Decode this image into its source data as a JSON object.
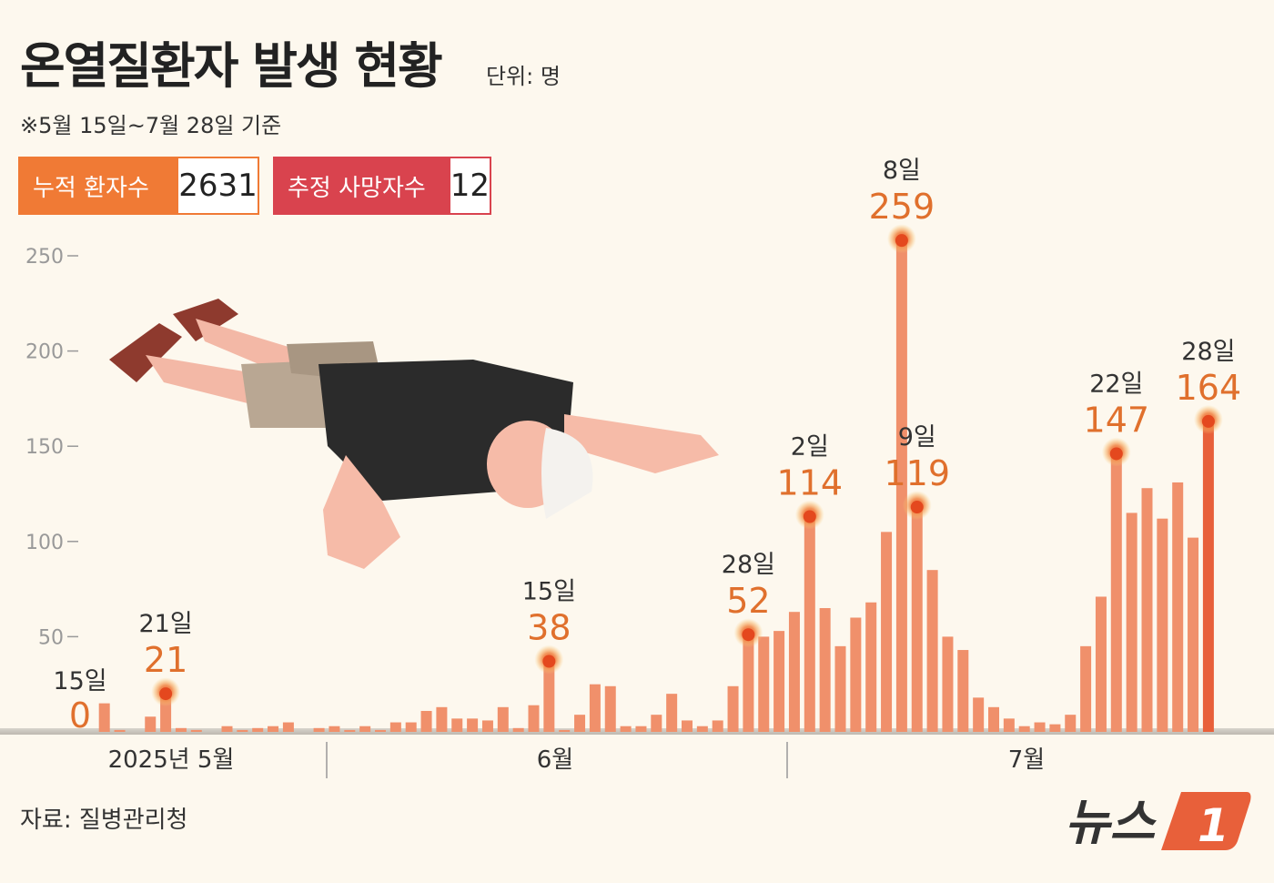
{
  "header": {
    "title": "온열질환자 발생 현황",
    "unit": "단위: 명",
    "basis": "※5월 15일~7월 28일 기준"
  },
  "summary": {
    "cumulative_label": "누적 환자수",
    "cumulative_value": "2631",
    "deaths_label": "추정 사망자수",
    "deaths_value": "12"
  },
  "colors": {
    "cumulative": "#F07A35",
    "deaths": "#D9434E",
    "bar": "#F0906B",
    "bar_latest": "#E8603A",
    "highlight_text": "#E0702D",
    "background": "#FDF8EE"
  },
  "chart_data": {
    "type": "bar",
    "title": "온열질환자 발생 현황",
    "ylim": [
      0,
      250
    ],
    "yticks": [
      50,
      100,
      150,
      200,
      250
    ],
    "grid": false,
    "month_labels": [
      "2025년 5월",
      "6월",
      "7월"
    ],
    "start_date": "2025-05-15",
    "end_date": "2025-07-28",
    "values": [
      0,
      0,
      15,
      1,
      0,
      8,
      21,
      2,
      1,
      0,
      3,
      1,
      2,
      3,
      5,
      0,
      2,
      3,
      1,
      3,
      1,
      5,
      5,
      11,
      13,
      7,
      7,
      6,
      13,
      2,
      14,
      38,
      1,
      9,
      25,
      24,
      3,
      3,
      9,
      20,
      6,
      3,
      6,
      24,
      52,
      50,
      53,
      63,
      114,
      65,
      45,
      60,
      68,
      105,
      259,
      119,
      85,
      50,
      43,
      18,
      13,
      7,
      3,
      5,
      4,
      9,
      45,
      71,
      147,
      115,
      128,
      112,
      131,
      102,
      164
    ],
    "annotations": [
      {
        "index": 0,
        "day": "15일",
        "value": "0"
      },
      {
        "index": 6,
        "day": "21일",
        "value": "21"
      },
      {
        "index": 31,
        "day": "15일",
        "value": "38"
      },
      {
        "index": 44,
        "day": "28일",
        "value": "52"
      },
      {
        "index": 48,
        "day": "2일",
        "value": "114"
      },
      {
        "index": 54,
        "day": "8일",
        "value": "259"
      },
      {
        "index": 55,
        "day": "9일",
        "value": "119"
      },
      {
        "index": 68,
        "day": "22일",
        "value": "147"
      },
      {
        "index": 74,
        "day": "28일",
        "value": "164"
      }
    ]
  },
  "footer": {
    "source": "자료: 질병관리청",
    "logo_text": "뉴스1"
  }
}
